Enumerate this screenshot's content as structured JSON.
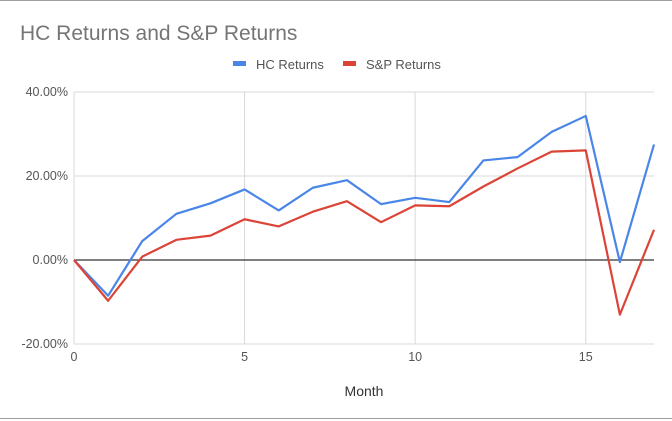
{
  "chart_data": {
    "type": "line",
    "title": "HC Returns and S&P Returns",
    "xlabel": "Month",
    "ylabel": "",
    "x": [
      0,
      1,
      2,
      3,
      4,
      5,
      6,
      7,
      8,
      9,
      10,
      11,
      12,
      13,
      14,
      15,
      16,
      17
    ],
    "xlim": [
      0,
      17
    ],
    "ylim": [
      -20,
      40
    ],
    "x_ticks": [
      0,
      5,
      10,
      15
    ],
    "x_tick_labels": [
      "0",
      "5",
      "10",
      "15"
    ],
    "y_ticks": [
      40,
      20,
      0,
      -20
    ],
    "y_tick_labels": [
      "40.00%",
      "20.00%",
      "0.00%",
      "-20.00%"
    ],
    "grid": true,
    "legend_position": "top-center",
    "series": [
      {
        "name": "HC Returns",
        "color": "#4a86e8",
        "values": [
          0,
          -8.5,
          4.5,
          11,
          13.5,
          16.8,
          11.8,
          17.2,
          19,
          13.3,
          14.8,
          13.8,
          23.7,
          24.5,
          30.5,
          34.3,
          -0.5,
          27.5
        ]
      },
      {
        "name": "S&P Returns",
        "color": "#db4437",
        "values": [
          0,
          -9.7,
          0.8,
          4.8,
          5.8,
          9.7,
          8,
          11.5,
          14,
          9,
          13,
          12.8,
          17.5,
          21.8,
          25.8,
          26.1,
          -13,
          7.2
        ]
      }
    ]
  }
}
